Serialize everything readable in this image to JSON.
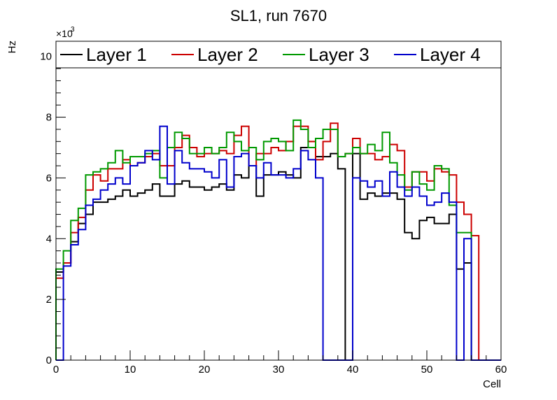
{
  "chart_data": {
    "type": "line",
    "title": "SL1, run 7670",
    "xlabel": "Cell",
    "ylabel": "Hz",
    "y_multiplier_prefix": "×10",
    "y_multiplier_exponent": "3",
    "xlim": [
      0,
      60
    ],
    "ylim": [
      0,
      10.5
    ],
    "x_ticks": [
      0,
      10,
      20,
      30,
      40,
      50,
      60
    ],
    "y_ticks": [
      0,
      2,
      4,
      6,
      8,
      10
    ],
    "legend_position": "top",
    "series": [
      {
        "name": "Layer 1",
        "color": "#000000",
        "values": [
          2.9,
          3.2,
          3.9,
          4.5,
          4.8,
          5.2,
          5.2,
          5.3,
          5.4,
          5.6,
          5.4,
          5.5,
          5.6,
          5.8,
          5.4,
          5.4,
          5.8,
          5.9,
          5.7,
          5.7,
          5.6,
          5.7,
          5.8,
          5.6,
          6.1,
          6.0,
          6.4,
          5.4,
          6.1,
          6.1,
          6.2,
          6.1,
          6.0,
          7.0,
          7.0,
          6.7,
          6.7,
          6.8,
          6.3,
          0,
          6.8,
          5.3,
          5.5,
          5.4,
          5.5,
          5.5,
          5.3,
          4.2,
          4.0,
          4.6,
          4.7,
          4.5,
          4.5,
          4.8,
          3.0,
          3.2,
          0,
          0,
          0,
          0
        ]
      },
      {
        "name": "Layer 2",
        "color": "#cc0000",
        "values": [
          2.7,
          3.2,
          4.2,
          4.7,
          5.6,
          6.1,
          5.9,
          6.3,
          6.3,
          6.6,
          6.4,
          6.5,
          6.7,
          6.8,
          6.4,
          6.4,
          7.0,
          7.4,
          7.0,
          6.7,
          6.8,
          6.8,
          6.9,
          6.8,
          7.4,
          7.7,
          6.4,
          6.8,
          6.8,
          7.0,
          6.9,
          7.2,
          7.7,
          7.7,
          7.2,
          6.6,
          7.2,
          7.8,
          6.7,
          6.8,
          7.3,
          6.8,
          6.8,
          6.6,
          6.7,
          7.1,
          6.9,
          5.7,
          6.2,
          6.2,
          5.9,
          6.3,
          6.2,
          6.1,
          5.2,
          4.8,
          4.1,
          0,
          0,
          0
        ]
      },
      {
        "name": "Layer 3",
        "color": "#009900",
        "values": [
          3.0,
          3.6,
          4.6,
          5.0,
          6.1,
          6.2,
          6.3,
          6.5,
          6.9,
          6.5,
          6.7,
          6.7,
          6.8,
          6.9,
          6.0,
          7.0,
          7.5,
          7.3,
          6.8,
          6.8,
          7.0,
          6.8,
          7.0,
          7.5,
          7.2,
          6.9,
          7.0,
          6.6,
          7.2,
          7.3,
          7.2,
          6.9,
          7.9,
          7.6,
          7.0,
          7.3,
          7.6,
          7.6,
          6.7,
          6.8,
          7.0,
          6.8,
          7.1,
          6.9,
          7.5,
          6.5,
          6.1,
          5.6,
          6.2,
          5.8,
          5.6,
          6.4,
          6.3,
          5.1,
          4.2,
          4.2,
          0,
          0,
          0,
          0
        ]
      },
      {
        "name": "Layer 4",
        "color": "#0000cc",
        "values": [
          0,
          3.1,
          3.8,
          4.3,
          5.1,
          5.3,
          5.6,
          5.8,
          6.0,
          5.8,
          6.4,
          6.5,
          6.9,
          6.6,
          7.7,
          5.8,
          6.9,
          6.5,
          6.3,
          6.3,
          6.2,
          6.0,
          6.6,
          5.7,
          6.7,
          6.8,
          6.4,
          6.0,
          6.5,
          6.1,
          6.1,
          6.0,
          6.3,
          6.9,
          6.6,
          6.0,
          0,
          0,
          0,
          0,
          6.0,
          5.9,
          5.7,
          5.9,
          5.4,
          6.2,
          5.7,
          5.4,
          5.7,
          5.4,
          5.1,
          5.2,
          5.5,
          5.2,
          0,
          4.0,
          0,
          0,
          0,
          0
        ]
      }
    ]
  }
}
